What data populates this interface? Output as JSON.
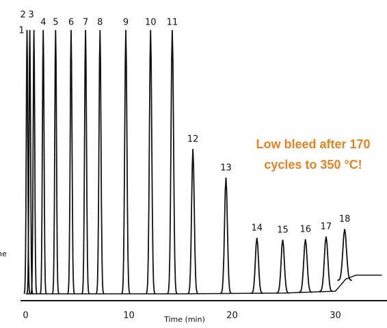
{
  "chart_data": {
    "type": "chromatogram",
    "xlabel": "Time (min)",
    "side_label": "ne",
    "annotation": [
      "Low bleed after 170",
      "cycles to 350 °C!"
    ],
    "categories": [
      "1",
      "2",
      "3",
      "4",
      "5",
      "6",
      "7",
      "8",
      "9",
      "10",
      "11",
      "12",
      "13",
      "14",
      "15",
      "16",
      "17",
      "18"
    ],
    "x": [
      0.13,
      0.4,
      0.8,
      1.7,
      2.9,
      4.4,
      5.8,
      7.2,
      9.7,
      12.1,
      14.2,
      16.2,
      19.4,
      22.4,
      24.9,
      27.1,
      29.1,
      30.9
    ],
    "values": [
      99,
      99,
      99,
      99,
      99,
      99,
      99,
      99,
      99,
      99,
      99,
      54.6,
      43.9,
      21.4,
      20.7,
      20.9,
      21.9,
      24.7
    ],
    "baseline": {
      "x": [
        0,
        15,
        25,
        30,
        31,
        32,
        34.5
      ],
      "y": [
        0.5,
        0.5,
        0.8,
        1.5,
        6,
        7.5,
        7.5
      ]
    },
    "color": "#111111",
    "xlim": [
      -0.5,
      35
    ],
    "xticks": [
      0,
      10,
      20,
      30
    ],
    "ylim": [
      0,
      100
    ]
  }
}
